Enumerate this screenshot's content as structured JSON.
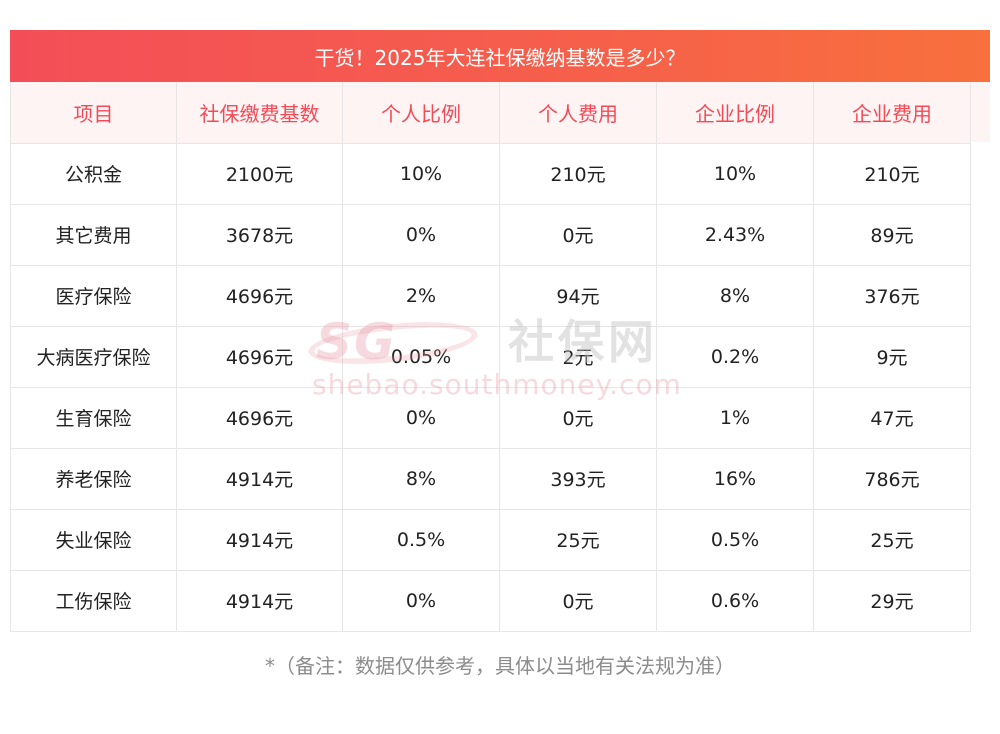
{
  "title": "干货！2025年大连社保缴纳基数是多少？",
  "table": {
    "headers": [
      "项目",
      "社保缴费基数",
      "个人比例",
      "个人费用",
      "企业比例",
      "企业费用"
    ],
    "rows": [
      [
        "公积金",
        "2100元",
        "10%",
        "210元",
        "10%",
        "210元"
      ],
      [
        "其它费用",
        "3678元",
        "0%",
        "0元",
        "2.43%",
        "89元"
      ],
      [
        "医疗保险",
        "4696元",
        "2%",
        "94元",
        "8%",
        "376元"
      ],
      [
        "大病医疗保险",
        "4696元",
        "0.05%",
        "2元",
        "0.2%",
        "9元"
      ],
      [
        "生育保险",
        "4696元",
        "0%",
        "0元",
        "1%",
        "47元"
      ],
      [
        "养老保险",
        "4914元",
        "8%",
        "393元",
        "16%",
        "786元"
      ],
      [
        "失业保险",
        "4914元",
        "0.5%",
        "25元",
        "0.5%",
        "25元"
      ],
      [
        "工伤保险",
        "4914元",
        "0%",
        "0元",
        "0.6%",
        "29元"
      ]
    ]
  },
  "watermark": {
    "logo": "SG",
    "name": "社保网",
    "url": "shebao.southmoney.com"
  },
  "footnote": "*（备注：数据仅供参考，具体以当地有关法规为准）",
  "colors": {
    "title_bar": "#f4525a",
    "header_text": "#f24b58",
    "header_bg": "#fff4f4",
    "border": "#e6e6e6",
    "footnote": "#8c8c8c"
  }
}
